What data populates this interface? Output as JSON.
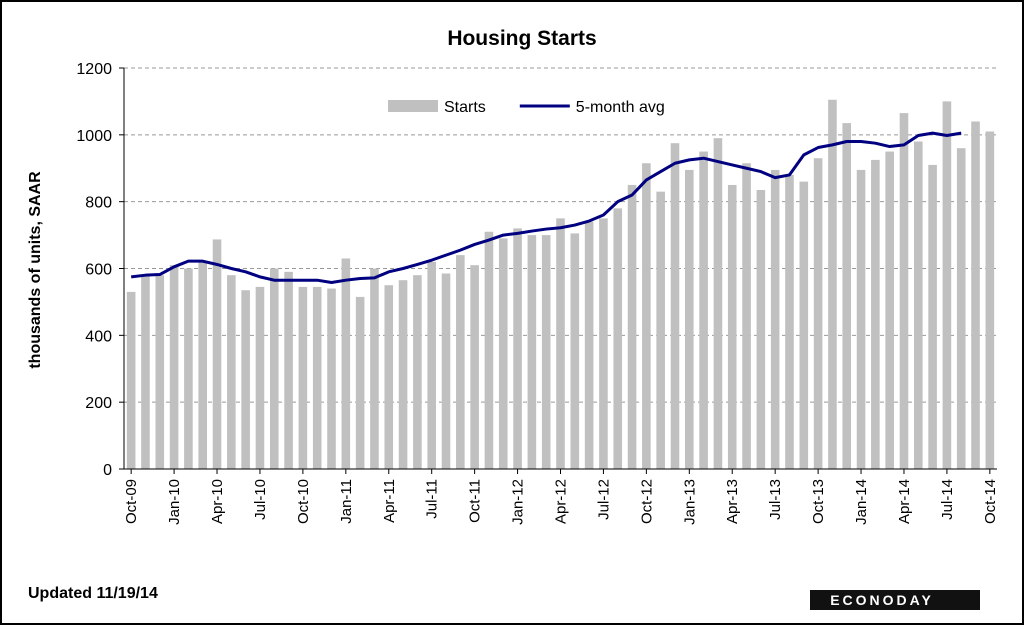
{
  "chart_data": {
    "type": "bar_line",
    "title": "Housing  Starts",
    "y_axis_label": "thousands of units, SAAR",
    "footnote": "Updated 11/19/14",
    "source_logo": "ECONODAY",
    "categories": [
      "Oct-09",
      null,
      null,
      "Jan-10",
      null,
      null,
      "Apr-10",
      null,
      null,
      "Jul-10",
      null,
      null,
      "Oct-10",
      null,
      null,
      "Jan-11",
      null,
      null,
      "Apr-11",
      null,
      null,
      "Jul-11",
      null,
      null,
      "Oct-11",
      null,
      null,
      "Jan-12",
      null,
      null,
      "Apr-12",
      null,
      null,
      "Jul-12",
      null,
      null,
      "Oct-12",
      null,
      null,
      "Jan-13",
      null,
      null,
      "Apr-13",
      null,
      null,
      "Jul-13",
      null,
      null,
      "Oct-13",
      null,
      null,
      "Jan-14",
      null,
      null,
      "Apr-14",
      null,
      null,
      "Jul-14",
      null,
      null,
      "Oct-14"
    ],
    "series": [
      {
        "name": "Starts",
        "kind": "bar",
        "color": "#c0c0c0",
        "values": [
          530,
          580,
          580,
          610,
          600,
          620,
          687,
          580,
          535,
          545,
          600,
          590,
          545,
          545,
          540,
          630,
          515,
          600,
          550,
          565,
          580,
          620,
          585,
          640,
          610,
          710,
          690,
          720,
          700,
          700,
          750,
          705,
          740,
          750,
          780,
          850,
          915,
          830,
          975,
          895,
          950,
          990,
          850,
          915,
          835,
          895,
          880,
          860,
          930,
          1105,
          1035,
          895,
          925,
          950,
          1065,
          980,
          910,
          1100,
          960,
          1040,
          1010
        ]
      },
      {
        "name": "5-month avg",
        "kind": "line",
        "color": "#000080",
        "values": [
          575,
          580,
          582,
          605,
          622,
          622,
          612,
          600,
          590,
          575,
          565,
          565,
          565,
          565,
          558,
          565,
          570,
          572,
          590,
          600,
          612,
          625,
          640,
          655,
          672,
          685,
          700,
          705,
          712,
          718,
          722,
          730,
          742,
          760,
          800,
          820,
          865,
          890,
          915,
          925,
          930,
          920,
          910,
          900,
          890,
          872,
          880,
          940,
          962,
          970,
          980,
          980,
          975,
          965,
          970,
          998,
          1005,
          998,
          1005,
          null,
          null
        ]
      }
    ],
    "ylim": [
      0,
      1200
    ],
    "yticks": [
      0,
      200,
      400,
      600,
      800,
      1000,
      1200
    ],
    "grid": true,
    "legend": "top"
  }
}
